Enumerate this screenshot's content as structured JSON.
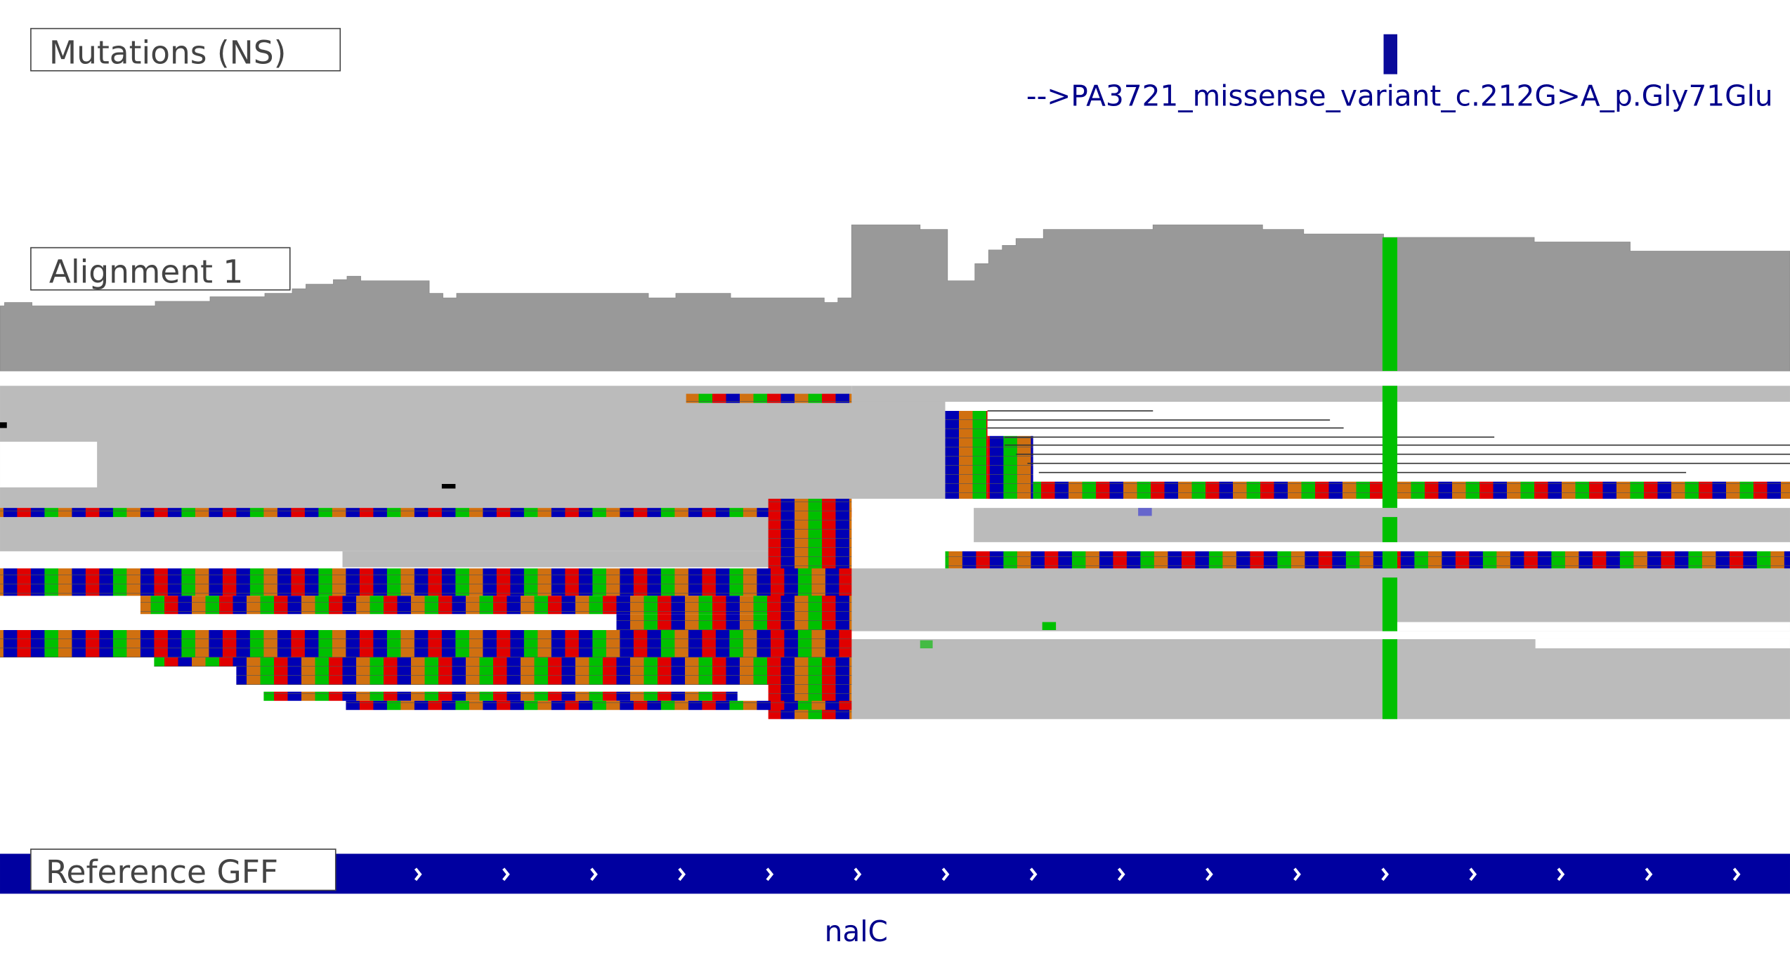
{
  "mutations_track": {
    "label": "Mutations (NS)",
    "feature_label": "-->PA3721_missense_variant_c.212G>A_p.Gly71Glu"
  },
  "alignment_track": {
    "label": "Alignment 1"
  },
  "gff_track": {
    "label": "Reference GFF",
    "gene_label": "nalC"
  }
}
